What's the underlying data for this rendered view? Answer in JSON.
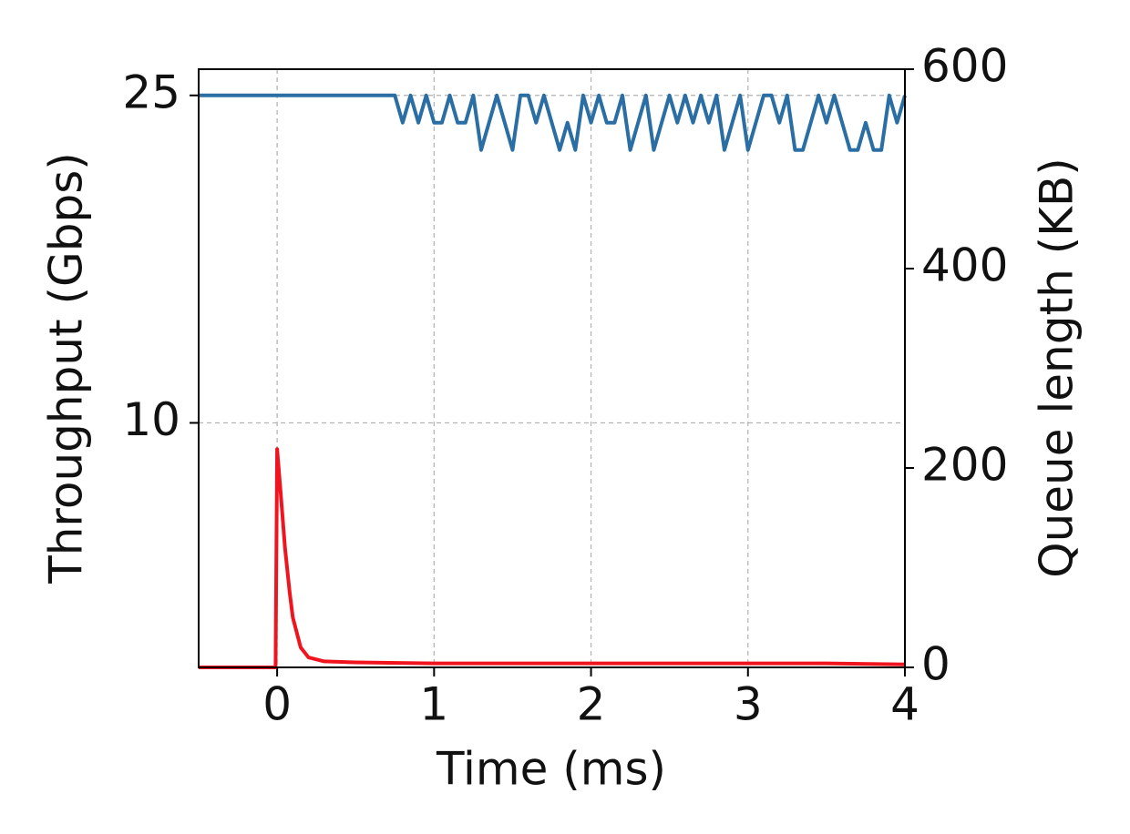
{
  "chart_data": {
    "type": "line",
    "xlabel": "Time (ms)",
    "ylabel": "Throughput (Gbps)",
    "y2label": "Queue length (KB)",
    "xlim": [
      -0.5,
      4
    ],
    "xticks": [
      0,
      1,
      2,
      3,
      4
    ],
    "ylim": [
      -1.2,
      26.2
    ],
    "yticks": [
      10,
      25
    ],
    "y2lim": [
      0,
      600
    ],
    "y2ticks": [
      0,
      200,
      400,
      600
    ],
    "grid": true,
    "series": [
      {
        "color": "#2a6ea4",
        "x": [
          -0.5,
          0.75,
          0.8,
          0.85,
          0.9,
          0.95,
          1.0,
          1.05,
          1.1,
          1.15,
          1.2,
          1.25,
          1.3,
          1.35,
          1.4,
          1.45,
          1.5,
          1.55,
          1.6,
          1.65,
          1.7,
          1.75,
          1.8,
          1.85,
          1.9,
          1.95,
          2.0,
          2.05,
          2.1,
          2.15,
          2.2,
          2.25,
          2.3,
          2.35,
          2.4,
          2.45,
          2.5,
          2.55,
          2.6,
          2.65,
          2.7,
          2.75,
          2.8,
          2.85,
          2.9,
          2.95,
          3.0,
          3.05,
          3.1,
          3.15,
          3.2,
          3.25,
          3.3,
          3.35,
          3.4,
          3.45,
          3.5,
          3.55,
          3.6,
          3.65,
          3.7,
          3.75,
          3.8,
          3.85,
          3.9,
          3.95,
          4.0
        ],
        "values": [
          25,
          25,
          23.75,
          25,
          23.75,
          25,
          23.75,
          23.75,
          25,
          23.75,
          23.75,
          25,
          22.5,
          23.75,
          25,
          23.75,
          22.5,
          25,
          25,
          23.75,
          25,
          23.75,
          22.5,
          23.75,
          22.5,
          25,
          23.75,
          25,
          23.75,
          23.75,
          25,
          22.5,
          23.75,
          25,
          22.5,
          23.75,
          25,
          23.75,
          25,
          23.75,
          25,
          23.75,
          25,
          22.5,
          23.75,
          25,
          22.5,
          23.75,
          25,
          25,
          23.75,
          25,
          22.5,
          22.5,
          23.75,
          25,
          23.75,
          25,
          23.75,
          22.5,
          22.5,
          23.75,
          22.5,
          22.5,
          25,
          23.75,
          25
        ]
      },
      {
        "color": "#f0141e",
        "axis": "y2",
        "x": [
          -0.5,
          -0.01,
          0,
          0.02,
          0.05,
          0.08,
          0.1,
          0.15,
          0.2,
          0.3,
          0.5,
          1,
          1.5,
          2,
          2.5,
          3,
          3.5,
          4
        ],
        "values": [
          0,
          0,
          219,
          180,
          120,
          75,
          50,
          20,
          10,
          6,
          5,
          4,
          4,
          4,
          4,
          4,
          4,
          3
        ]
      }
    ]
  }
}
